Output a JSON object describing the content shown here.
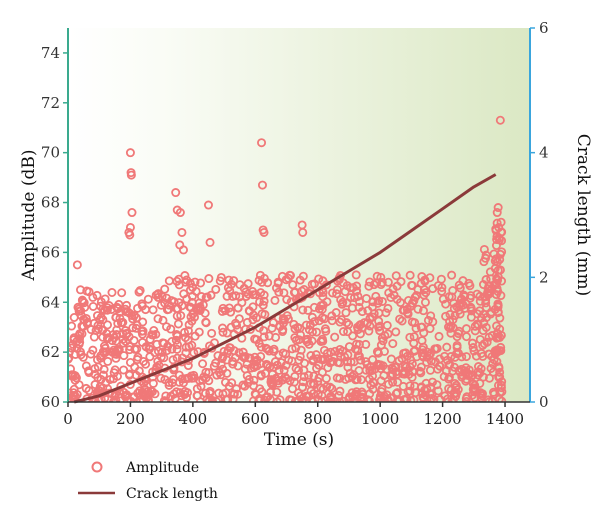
{
  "chart_data": {
    "type": "scatter",
    "xlabel": "Time (s)",
    "ylabel_left": "Amplitude (dB)",
    "ylabel_right": "Crack length (mm)",
    "xlim": [
      0,
      1480
    ],
    "ylim_left": [
      60,
      75
    ],
    "ylim_right": [
      0,
      6
    ],
    "x_ticks": [
      0,
      200,
      400,
      600,
      800,
      1000,
      1200,
      1400
    ],
    "y_left_ticks": [
      60,
      62,
      64,
      66,
      68,
      70,
      72,
      74
    ],
    "y_right_ticks": [
      0,
      2,
      4,
      6
    ],
    "grid": false,
    "legend_position": "bottom-left (below plot)",
    "series": [
      {
        "name": "Amplitude",
        "kind": "scatter",
        "axis": "left",
        "marker": "open-circle",
        "color": "#f07878",
        "dense_band": {
          "x_range": [
            0,
            1380
          ],
          "amplitude_range": [
            60,
            65
          ]
        },
        "outliers": [
          [
            30,
            65.5
          ],
          [
            40,
            64.5
          ],
          [
            195,
            66.8
          ],
          [
            198,
            66.7
          ],
          [
            200,
            70.0
          ],
          [
            202,
            69.2
          ],
          [
            203,
            69.1
          ],
          [
            205,
            67.6
          ],
          [
            200,
            67.0
          ],
          [
            345,
            68.4
          ],
          [
            350,
            67.7
          ],
          [
            360,
            67.6
          ],
          [
            358,
            66.3
          ],
          [
            365,
            66.8
          ],
          [
            370,
            66.1
          ],
          [
            450,
            67.9
          ],
          [
            455,
            66.4
          ],
          [
            620,
            70.4
          ],
          [
            623,
            68.7
          ],
          [
            625,
            66.9
          ],
          [
            628,
            66.8
          ],
          [
            750,
            67.1
          ],
          [
            752,
            66.8
          ],
          [
            1375,
            67.6
          ],
          [
            1378,
            67.8
          ],
          [
            1380,
            67.0
          ],
          [
            1382,
            66.5
          ],
          [
            1385,
            71.3
          ]
        ]
      },
      {
        "name": "Crack length",
        "kind": "line",
        "axis": "right",
        "color": "#8b3a3a",
        "x": [
          20,
          100,
          200,
          300,
          400,
          500,
          600,
          700,
          800,
          900,
          1000,
          1100,
          1200,
          1300,
          1370
        ],
        "y": [
          0.0,
          0.1,
          0.3,
          0.5,
          0.7,
          0.95,
          1.2,
          1.5,
          1.8,
          2.1,
          2.4,
          2.75,
          3.1,
          3.45,
          3.65
        ]
      }
    ]
  },
  "legend": {
    "amplitude_label": "Amplitude",
    "crack_label": "Crack length"
  },
  "colors": {
    "left_axis": "#3aaa8e",
    "right_axis": "#3aa5dd",
    "background_start": "#ffffff",
    "background_end": "#dbe8c4"
  }
}
